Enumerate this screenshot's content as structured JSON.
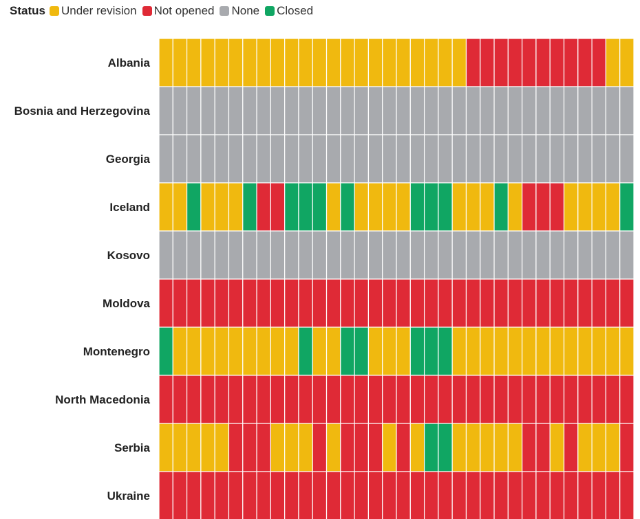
{
  "chart_data": {
    "type": "heatmap",
    "legend": {
      "title": "Status",
      "placement": "top-left",
      "items": [
        {
          "key": "U",
          "label": "Under revision",
          "color": "#F0B90F"
        },
        {
          "key": "N",
          "label": "Not opened",
          "color": "#DF2A36"
        },
        {
          "key": "G",
          "label": "None",
          "color": "#A8AAAE"
        },
        {
          "key": "C",
          "label": "Closed",
          "color": "#10A663"
        }
      ]
    },
    "rows": [
      {
        "name": "Albania",
        "cells": "UUUUUUUUUUUUUUUUUUUUUUNNNNNNNNNNUU"
      },
      {
        "name": "Bosnia and Herzegovina",
        "cells": "GGGGGGGGGGGGGGGGGGGGGGGGGGGGGGGGGG"
      },
      {
        "name": "Georgia",
        "cells": "GGGGGGGGGGGGGGGGGGGGGGGGGGGGGGGGGG"
      },
      {
        "name": "Iceland",
        "cells": "UUCUUUCNNCCCUCUUUUCCCUUUCUNNNUUUUC"
      },
      {
        "name": "Kosovo",
        "cells": "GGGGGGGGGGGGGGGGGGGGGGGGGGGGGGGGGG"
      },
      {
        "name": "Moldova",
        "cells": "NNNNNNNNNNNNNNNNNNNNNNNNNNNNNNNNNN"
      },
      {
        "name": "Montenegro",
        "cells": "CUUUUUUUUUCUUCCUUUCCCUUUUUUUUUUUUU"
      },
      {
        "name": "North Macedonia",
        "cells": "NNNNNNNNNNNNNNNNNNNNNNNNNNNNNNNNNN"
      },
      {
        "name": "Serbia",
        "cells": "UUUUUNNNUUUNUNNNUNUCCUUUUUNNUNUUUN"
      },
      {
        "name": "Ukraine",
        "cells": "NNNNNNNNNNNNNNNNNNNNNNNNNNNNNNNNNN"
      }
    ],
    "grid": true
  }
}
